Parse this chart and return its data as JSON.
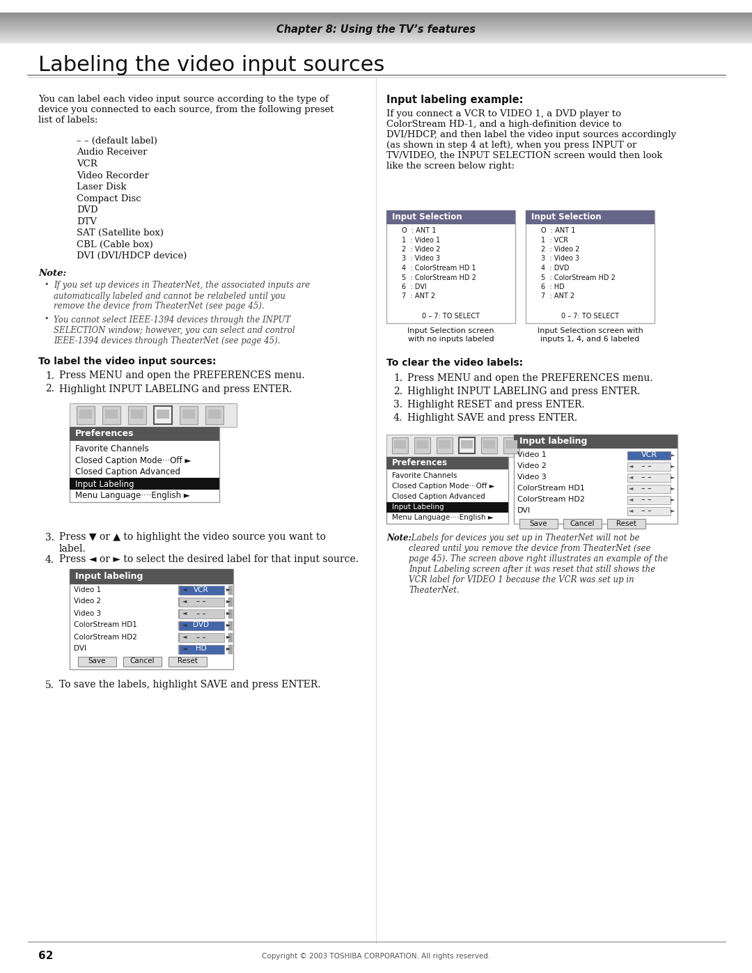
{
  "page_bg": "#ffffff",
  "header_text": "Chapter 8: Using the TV’s features",
  "title": "Labeling the video input sources",
  "page_number": "62",
  "footer_text": "Copyright © 2003 TOSHIBA CORPORATION. All rights reserved.",
  "intro_text": "You can label each video input source according to the type of\ndevice you connected to each source, from the following preset\nlist of labels:",
  "label_list": [
    "– – (default label)",
    "Audio Receiver",
    "VCR",
    "Video Recorder",
    "Laser Disk",
    "Compact Disc",
    "DVD",
    "DTV",
    "SAT (Satellite box)",
    "CBL (Cable box)",
    "DVI (DVI/HDCP device)"
  ],
  "note_bold": "Note:",
  "note_bullets": [
    "If you set up devices in TheaterNet, the associated inputs are\nautomatically labeled and cannot be relabeled until you\nremove the device from TheaterNet (see page 45).",
    "You cannot select IEEE-1394 devices through the INPUT\nSELECTION window; however, you can select and control\nIEEE-1394 devices through TheaterNet (see page 45)."
  ],
  "label_section_title": "To label the video input sources:",
  "label_steps": [
    "Press MENU and open the PREFERENCES menu.",
    "Highlight INPUT LABELING and press ENTER.",
    "Press ▼ or ▲ to highlight the video source you want to\nlabel.",
    "Press ◄ or ► to select the desired label for that input source.",
    "To save the labels, highlight SAVE and press ENTER."
  ],
  "prefs_menu_header": "Preferences",
  "prefs_menu_items": [
    "Favorite Channels",
    "Closed Caption Mode···Off ►",
    "Closed Caption Advanced",
    "Input Labeling",
    "Menu Language····English ►"
  ],
  "input_labeling_title": "Input labeling",
  "input_labeling_rows": [
    [
      "Video 1",
      "VCR",
      true
    ],
    [
      "Video 2",
      "– –",
      false
    ],
    [
      "Video 3",
      "– –",
      false
    ],
    [
      "ColorStream HD1",
      "DVD",
      true
    ],
    [
      "ColorStream HD2",
      "– –",
      false
    ],
    [
      "DVI",
      "HD",
      true
    ]
  ],
  "input_labeling_buttons": [
    "Save",
    "Cancel",
    "Reset"
  ],
  "right_col_title": "Input labeling example:",
  "right_intro": "If you connect a VCR to VIDEO 1, a DVD player to\nColorStream HD-1, and a high-definition device to\nDVI/HDCP, and then label the video input sources accordingly\n(as shown in step 4 at left), when you press INPUT or\nTV/VIDEO, the INPUT SELECTION screen would then look\nlike the screen below right:",
  "input_sel_left_title": "Input Selection",
  "input_sel_left_rows": [
    "O  : ANT 1",
    "1  : Video 1",
    "2  : Video 2",
    "3  : Video 3",
    "4  : ColorStream HD 1",
    "5  : ColorStream HD 2",
    "6  : DVI",
    "7  : ANT 2"
  ],
  "input_sel_left_footer": "0 – 7: TO SELECT",
  "input_sel_left_caption": "Input Selection screen\nwith no inputs labeled",
  "input_sel_right_title": "Input Selection",
  "input_sel_right_rows": [
    "O  : ANT 1",
    "1  : VCR",
    "2  : Video 2",
    "3  : Video 3",
    "4  : DVD",
    "5  : ColorStream HD 2",
    "6  : HD",
    "7  : ANT 2"
  ],
  "input_sel_right_footer": "0 – 7: TO SELECT",
  "input_sel_right_caption": "Input Selection screen with\ninputs 1, 4, and 6 labeled",
  "clear_section_title": "To clear the video labels:",
  "clear_steps": [
    "Press MENU and open the PREFERENCES menu.",
    "Highlight INPUT LABELING and press ENTER.",
    "Highlight RESET and press ENTER.",
    "Highlight SAVE and press ENTER."
  ],
  "right_prefs_menu_header": "Preferences",
  "right_prefs_menu_items": [
    "Favorite Channels",
    "Closed Caption Mode···Off ►",
    "Closed Caption Advanced",
    "Input Labeling",
    "Menu Language····English ►"
  ],
  "right_input_labeling_title": "Input labeling",
  "right_input_labeling_rows": [
    [
      "Video 1",
      "VCR"
    ],
    [
      "Video 2",
      "– –"
    ],
    [
      "Video 3",
      "– –"
    ],
    [
      "ColorStream HD1",
      "– –"
    ],
    [
      "ColorStream HD2",
      "– –"
    ],
    [
      "DVI",
      "– –"
    ]
  ],
  "right_input_labeling_buttons": [
    "Save",
    "Cancel",
    "Reset"
  ],
  "right_note_bold": "Note:",
  "right_note_text": " Labels for devices you set up in TheaterNet will not be\ncleared until you remove the device from TheaterNet (see\npage 45). The screen above right illustrates an example of the\nInput Labeling screen after it was reset that still shows the\nVCR label for VIDEO 1 because the VCR was set up in\nTheaterNet."
}
